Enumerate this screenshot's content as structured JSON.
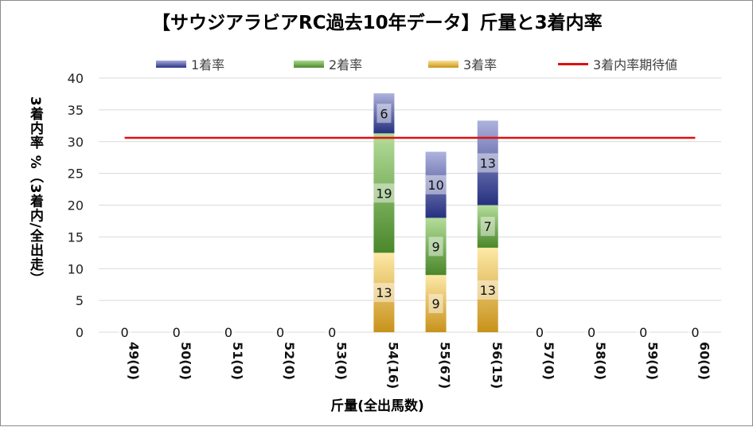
{
  "chart_data": {
    "type": "bar",
    "stacked": true,
    "title": "【サウジアラビアRC過去10年データ】斤量と3着内率",
    "xlabel": "斤量(全出馬数)",
    "ylabel": "3着内率 %（3着内/全出走）",
    "ylim": [
      0,
      40
    ],
    "yticks": [
      "0",
      "5",
      "10",
      "15",
      "20",
      "25",
      "30",
      "35",
      "40"
    ],
    "grid": true,
    "legend_position": "top",
    "categories": [
      "49(0)",
      "50(0)",
      "51(0)",
      "52(0)",
      "53(0)",
      "54(16)",
      "55(67)",
      "56(15)",
      "57(0)",
      "58(0)",
      "59(0)",
      "60(0)"
    ],
    "series": [
      {
        "name": "3着率",
        "color": "#d9a31f",
        "values": [
          0,
          0,
          0,
          0,
          0,
          12.5,
          9.0,
          13.3,
          0,
          0,
          0,
          0
        ],
        "labels": [
          "0",
          "0",
          "0",
          "0",
          "0",
          "13",
          "9",
          "13",
          "0",
          "0",
          "0",
          "0"
        ]
      },
      {
        "name": "2着率",
        "color": "#5b9a3a",
        "values": [
          0,
          0,
          0,
          0,
          0,
          18.8,
          9.0,
          6.7,
          0,
          0,
          0,
          0
        ],
        "labels": [
          "",
          "",
          "",
          "",
          "",
          "19",
          "9",
          "7",
          "",
          "",
          "",
          ""
        ]
      },
      {
        "name": "1着率",
        "color": "#2f3a8a",
        "values": [
          0,
          0,
          0,
          0,
          0,
          6.3,
          10.4,
          13.3,
          0,
          0,
          0,
          0
        ],
        "labels": [
          "",
          "",
          "",
          "",
          "",
          "6",
          "10",
          "13",
          "",
          "",
          "",
          ""
        ]
      }
    ],
    "reference_line": {
      "name": "3着内率期待値",
      "value": 30.6,
      "color": "#e01010"
    },
    "legend_order": [
      "1着率",
      "2着率",
      "3着率",
      "3着内率期待値"
    ]
  }
}
